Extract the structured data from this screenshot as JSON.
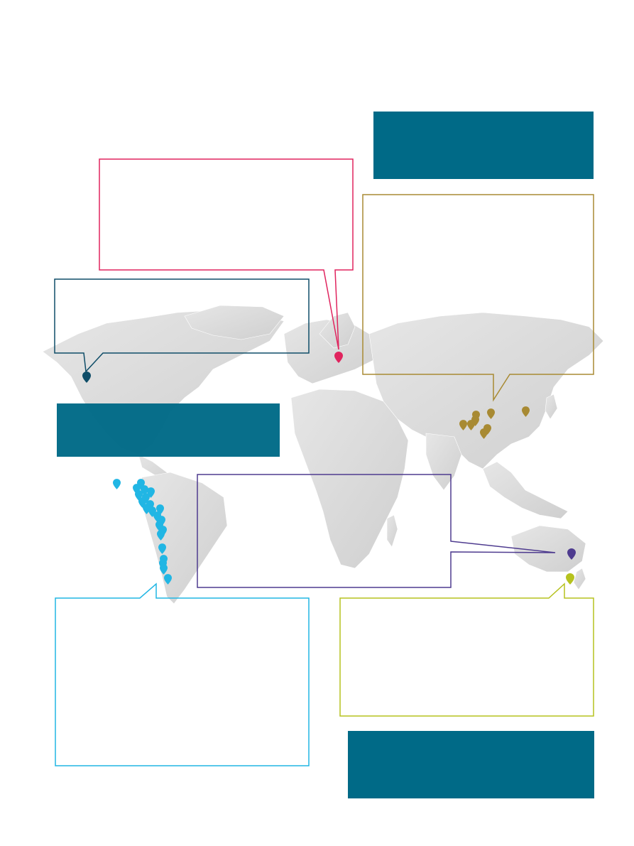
{
  "colors": {
    "teal": "#006a87",
    "pink": "#e0245e",
    "gold": "#a88a33",
    "cyan": "#21b6e4",
    "navy": "#0f4d68",
    "purple": "#4e3b8f",
    "lime": "#b6c21e",
    "land": "#dcdcdc"
  },
  "markers": {
    "icon": "map-pin-icon",
    "groups": [
      {
        "name": "canada-west",
        "color": "#0f4d68"
      },
      {
        "name": "scandinavia",
        "color": "#e0245e"
      },
      {
        "name": "china",
        "color": "#a88a33"
      },
      {
        "name": "south-america-west-coast",
        "color": "#21b6e4"
      },
      {
        "name": "australia-southeast",
        "color": "#4e3b8f"
      },
      {
        "name": "new-zealand",
        "color": "#b6c21e"
      }
    ]
  }
}
